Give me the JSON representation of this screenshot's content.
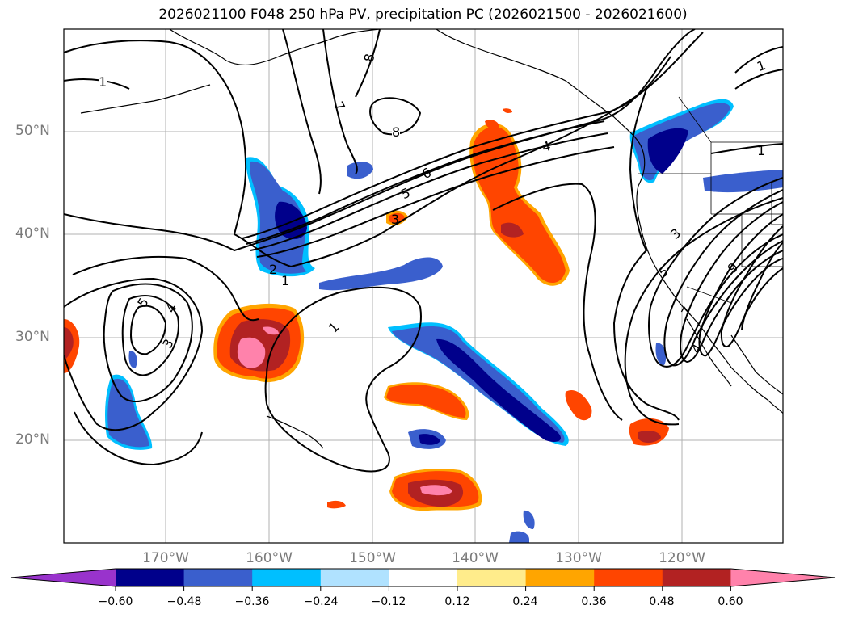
{
  "title": "2026021100 F048 250 hPa PV, precipitation PC (2026021500 - 2026021600)",
  "map": {
    "lat_labels": [
      "50°N",
      "40°N",
      "30°N",
      "20°N"
    ],
    "lon_labels": [
      "170°W",
      "160°W",
      "150°W",
      "140°W",
      "130°W",
      "120°W"
    ],
    "gridlines": true
  },
  "contour_labels": [
    "1",
    "8",
    "7",
    "8",
    "6",
    "5",
    "4",
    "2",
    "1",
    "5",
    "4",
    "3",
    "1",
    "1",
    "1",
    "3",
    "5",
    "7",
    "9",
    "4",
    "3"
  ],
  "colorbar": {
    "tick_labels": [
      "−0.60",
      "−0.48",
      "−0.36",
      "−0.24",
      "−0.12",
      "0.12",
      "0.24",
      "0.36",
      "0.48",
      "0.60"
    ],
    "colors": [
      "#9933cc",
      "#00008b",
      "#3a5fcd",
      "#00bfff",
      "#b0e2ff",
      "#ffffff",
      "#ffec8b",
      "#ffa500",
      "#ff4500",
      "#b22222",
      "#ff82ab"
    ]
  }
}
